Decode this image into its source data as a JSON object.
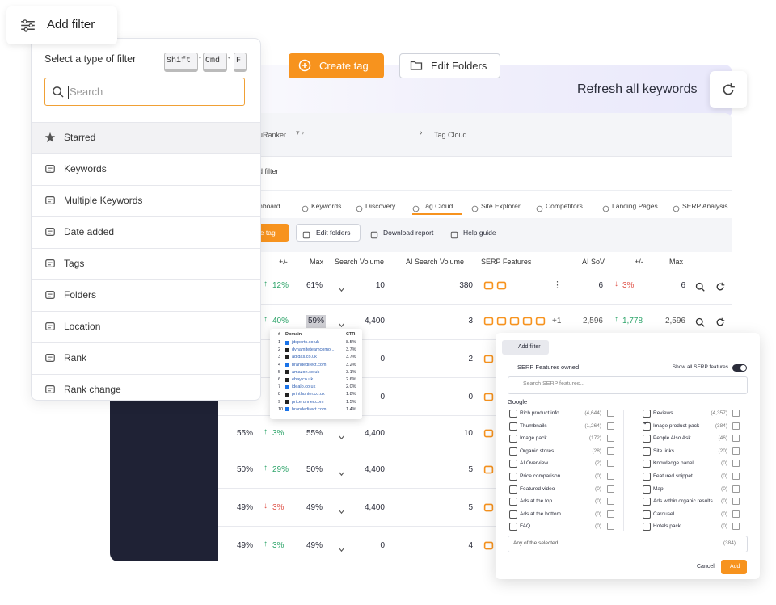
{
  "add_filter_button": "Add filter",
  "filter_panel": {
    "title": "Select a type of filter",
    "shortcut": [
      "Shift",
      "Cmd",
      "F"
    ],
    "search_placeholder": "Search",
    "items": [
      "Starred",
      "Keywords",
      "Multiple Keywords",
      "Date added",
      "Tags",
      "Folders",
      "Location",
      "Rank",
      "Rank change"
    ]
  },
  "header_actions": {
    "create_tag": "Create tag",
    "edit_folders": "Edit Folders",
    "refresh": "Refresh all keywords"
  },
  "app": {
    "breadcrumb": [
      "AccuRanker",
      "Tag Cloud"
    ],
    "add_filter": "Add filter",
    "tabs": [
      "Dashboard",
      "Keywords",
      "Discovery",
      "Tag Cloud",
      "Site Explorer",
      "Competitors",
      "Landing Pages",
      "SERP Analysis"
    ],
    "active_tab": 3,
    "toolbar": [
      "Create tag",
      "Edit folders",
      "Download report",
      "Help guide"
    ],
    "table": {
      "columns": [
        "+/-",
        "Max",
        "Search Volume",
        "AI Search Volume",
        "SERP Features",
        "AI SoV",
        "+/-",
        "Max"
      ],
      "rows": [
        {
          "change": "12%",
          "trend": "up",
          "max": "61%",
          "search_volume": "10",
          "ai_search_volume": "380",
          "ai_sov": "6",
          "ai_sov_change": "3%",
          "ai_sov_trend": "down",
          "ai_sov_max": "6"
        },
        {
          "change": "40%",
          "trend": "up",
          "max": "59%",
          "search_volume": "4,400",
          "ai_search_volume": "3",
          "serp_extra": "+1",
          "ai_sov": "2,596",
          "ai_sov_change": "1,778",
          "ai_sov_trend": "up",
          "ai_sov_max": "2,596"
        },
        {
          "search_volume": "0",
          "ai_search_volume": "2"
        },
        {
          "search_volume": "0",
          "ai_search_volume": "0"
        },
        {
          "share": "55%",
          "change": "3%",
          "trend": "up",
          "max": "55%",
          "search_volume": "4,400",
          "ai_search_volume": "10"
        },
        {
          "share": "50%",
          "change": "29%",
          "trend": "up",
          "max": "50%",
          "search_volume": "4,400",
          "ai_search_volume": "5"
        },
        {
          "share": "49%",
          "change": "3%",
          "trend": "down",
          "max": "49%",
          "search_volume": "4,400",
          "ai_search_volume": "5"
        },
        {
          "share": "49%",
          "change": "3%",
          "trend": "up",
          "max": "49%",
          "search_volume": "0",
          "ai_search_volume": "4"
        }
      ]
    }
  },
  "ctr_tooltip": {
    "columns": [
      "#",
      "Domain",
      "CTR"
    ],
    "rows": [
      [
        "1",
        "jdsports.co.uk",
        "8.5%"
      ],
      [
        "2",
        "dynamiteteamcomo...",
        "3.7%"
      ],
      [
        "3",
        "adidas.co.uk",
        "3.7%"
      ],
      [
        "4",
        "brandedirect.com",
        "3.2%"
      ],
      [
        "5",
        "amazon.co.uk",
        "3.1%"
      ],
      [
        "6",
        "ebay.co.uk",
        "2.6%"
      ],
      [
        "7",
        "idealo.co.uk",
        "2.0%"
      ],
      [
        "8",
        "printhunter.co.uk",
        "1.8%"
      ],
      [
        "9",
        "pricerunner.com",
        "1.5%"
      ],
      [
        "10",
        "brandedirect.com",
        "1.4%"
      ]
    ]
  },
  "serp_filter": {
    "add_filter": "Add filter",
    "title": "SERP Features owned",
    "show_all": "Show all SERP features",
    "search_placeholder": "Search SERP features...",
    "group": "Google",
    "left": [
      {
        "label": "Rich product info",
        "count": "(4,644)"
      },
      {
        "label": "Thumbnails",
        "count": "(1,264)"
      },
      {
        "label": "Image pack",
        "count": "(172)"
      },
      {
        "label": "Organic stores",
        "count": "(28)"
      },
      {
        "label": "AI Overview",
        "count": "(2)"
      },
      {
        "label": "Price comparison",
        "count": "(0)"
      },
      {
        "label": "Featured video",
        "count": "(0)"
      },
      {
        "label": "Ads at the top",
        "count": "(0)"
      },
      {
        "label": "Ads at the bottom",
        "count": "(0)"
      },
      {
        "label": "FAQ",
        "count": "(0)"
      }
    ],
    "right": [
      {
        "label": "Reviews",
        "count": "(4,357)"
      },
      {
        "label": "Image product pack",
        "count": "(384)",
        "checked": true
      },
      {
        "label": "People Also Ask",
        "count": "(46)"
      },
      {
        "label": "Site links",
        "count": "(20)"
      },
      {
        "label": "Knowledge panel",
        "count": "(0)"
      },
      {
        "label": "Featured snippet",
        "count": "(0)"
      },
      {
        "label": "Map",
        "count": "(0)"
      },
      {
        "label": "Ads within organic results",
        "count": "(0)"
      },
      {
        "label": "Carousel",
        "count": "(0)"
      },
      {
        "label": "Hotels pack",
        "count": "(0)"
      }
    ],
    "match": "Any of the selected",
    "match_count": "(384)",
    "cancel": "Cancel",
    "add": "Add"
  }
}
